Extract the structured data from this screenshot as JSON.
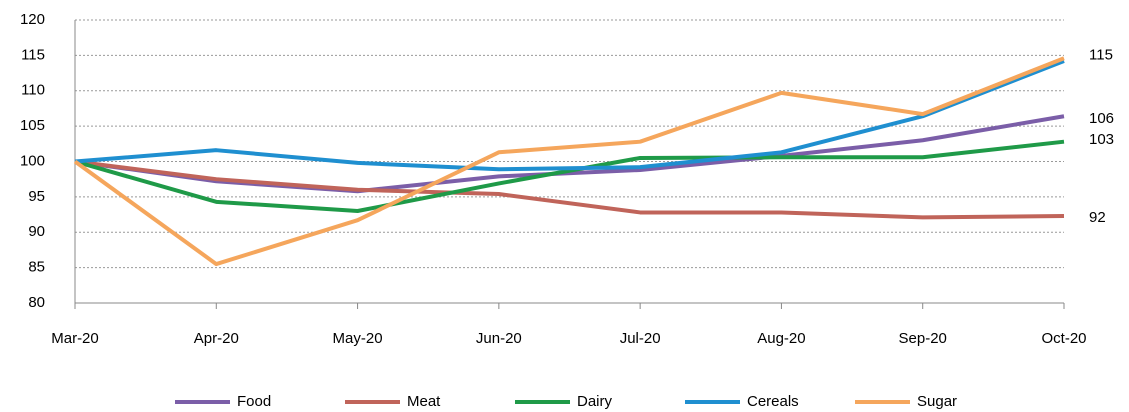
{
  "chart_data": {
    "type": "line",
    "categories": [
      "Mar-20",
      "Apr-20",
      "May-20",
      "Jun-20",
      "Jul-20",
      "Aug-20",
      "Sep-20",
      "Oct-20"
    ],
    "series": [
      {
        "name": "Food",
        "color": "#7b5ea8",
        "values": [
          100,
          97.2,
          95.8,
          97.9,
          98.8,
          100.8,
          103,
          106.4
        ]
      },
      {
        "name": "Meat",
        "color": "#c0645a",
        "values": [
          100,
          97.5,
          96,
          95.4,
          92.8,
          92.8,
          92.1,
          92.3
        ]
      },
      {
        "name": "Dairy",
        "color": "#1f9a48",
        "values": [
          100,
          94.3,
          93,
          96.9,
          100.5,
          100.6,
          100.6,
          102.8
        ]
      },
      {
        "name": "Cereals",
        "color": "#1f8fd0",
        "values": [
          100,
          101.6,
          99.8,
          98.9,
          99.2,
          101.3,
          106.4,
          114.2
        ]
      },
      {
        "name": "Sugar",
        "color": "#f5a65c",
        "values": [
          100,
          85.5,
          91.7,
          101.3,
          102.8,
          109.7,
          106.7,
          114.6
        ]
      }
    ],
    "end_labels": [
      115,
      106,
      103,
      92
    ],
    "ylim": [
      80,
      120
    ],
    "yticks": [
      80,
      85,
      90,
      95,
      100,
      105,
      110,
      115,
      120
    ],
    "grid": true,
    "legend": "bottom"
  }
}
